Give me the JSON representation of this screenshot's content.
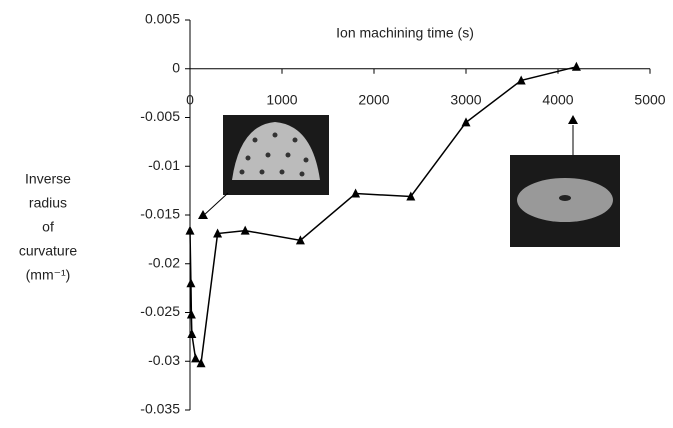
{
  "chart_data": {
    "type": "line",
    "x_label": "Ion machining time (s)",
    "y_label_lines": [
      "Inverse",
      "radius",
      "of",
      "curvature",
      "(mm⁻¹)"
    ],
    "x": [
      0,
      10,
      15,
      20,
      60,
      120,
      300,
      600,
      1200,
      1800,
      2400,
      3000,
      3600,
      4200
    ],
    "series": [
      {
        "color": "#000000",
        "values": [
          -0.0166,
          -0.022,
          -0.0252,
          -0.0272,
          -0.0297,
          -0.0302,
          -0.0169,
          -0.0166,
          -0.0176,
          -0.0128,
          -0.0131,
          -0.0055,
          -0.0012,
          0.0002
        ]
      }
    ],
    "xlim": [
      0,
      5000
    ],
    "xticks": [
      0,
      1000,
      2000,
      3000,
      4000,
      5000
    ],
    "ylim": [
      -0.035,
      0.005
    ],
    "yticks": [
      0.005,
      0,
      -0.005,
      -0.01,
      -0.015,
      -0.02,
      -0.025,
      -0.03,
      -0.035
    ]
  }
}
